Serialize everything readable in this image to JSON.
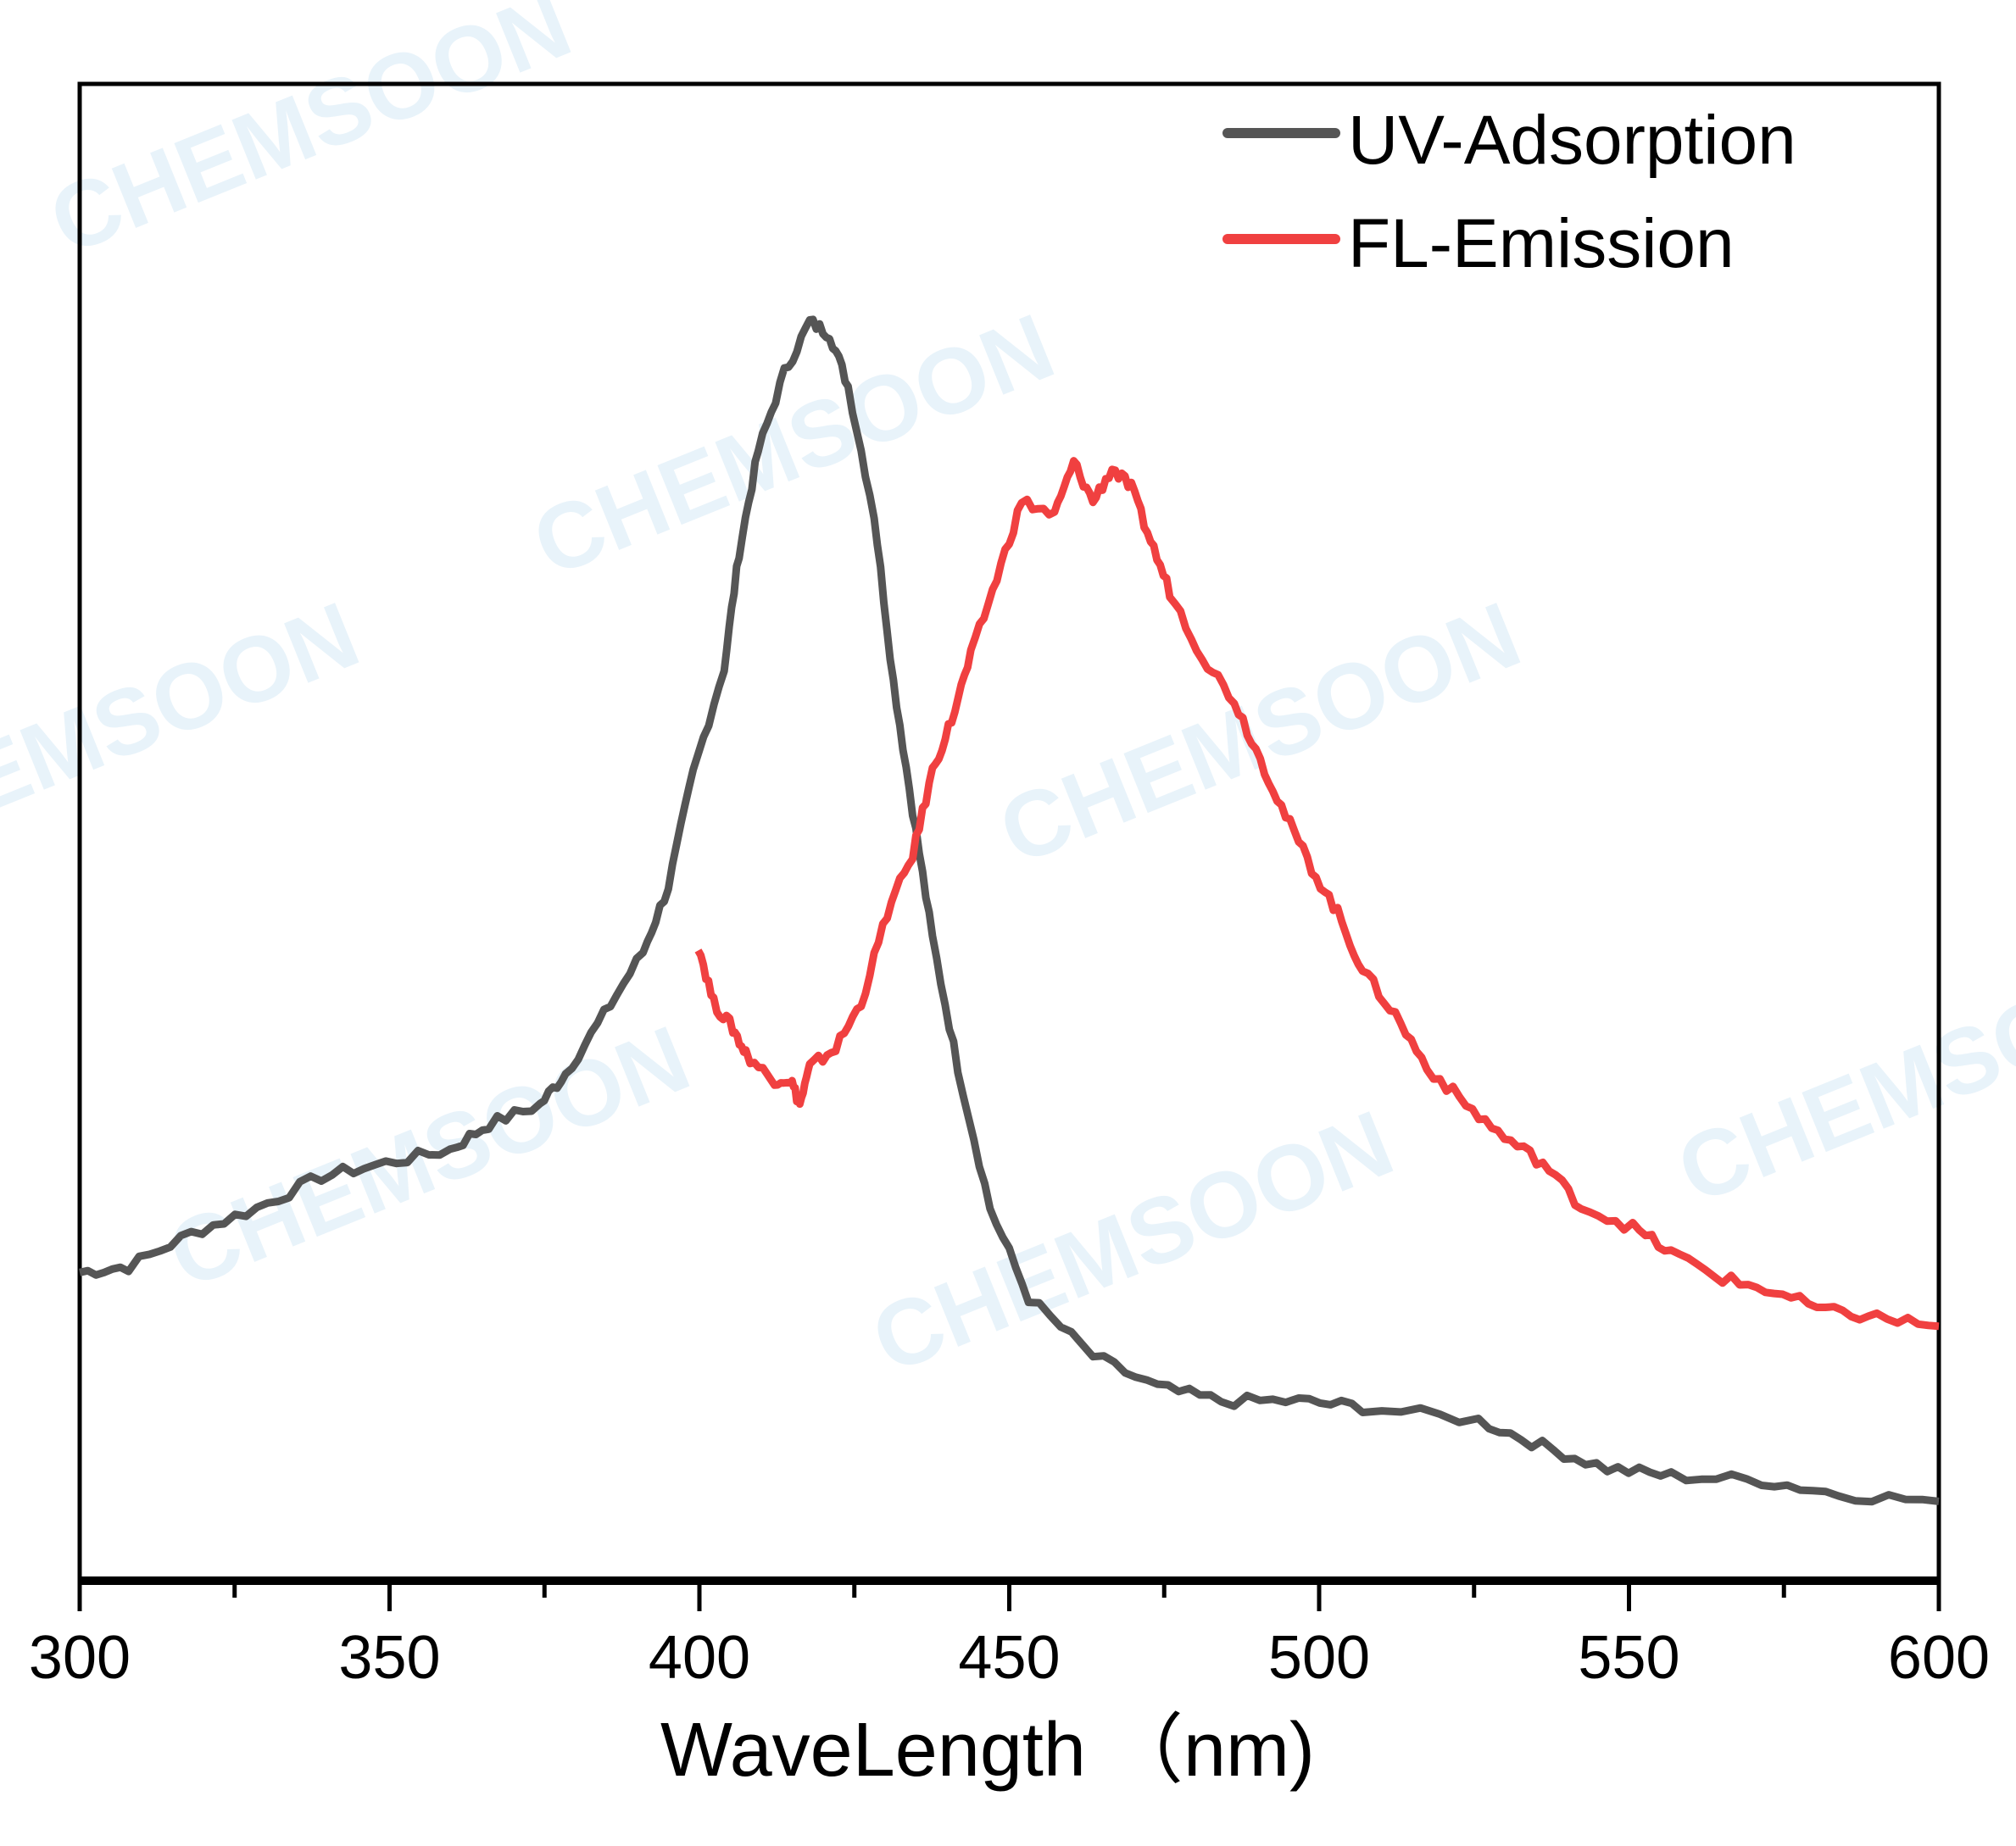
{
  "watermark": "CHEMSOON",
  "chart_data": {
    "type": "line",
    "title": "",
    "xlabel": "WaveLength （nm)",
    "ylabel": "",
    "xlim": [
      300,
      600
    ],
    "ylim": [
      0,
      1
    ],
    "y_ticks_shown": false,
    "grid": false,
    "legend_position": "top-right",
    "x_ticks": [
      "300",
      "350",
      "400",
      "450",
      "500",
      "550",
      "600"
    ],
    "series": [
      {
        "name": "UV-Adsorption",
        "color": "#555555",
        "x": [
          300,
          307.9,
          318,
          328.6,
          339,
          349.4,
          359.8,
          366,
          374.3,
          378.4,
          384.6,
          390.9,
          395,
          399,
          404,
          406.4,
          409.5,
          413.7,
          417.8,
          421,
          424,
          428.2,
          431.3,
          434.4,
          437.6,
          441.7,
          446.9,
          453.1,
          463.5,
          473.9,
          484.2,
          496.7,
          507,
          525.7,
          536,
          546.5,
          556.8,
          571.4,
          583.8,
          600
        ],
        "y": [
          0.206,
          0.21,
          0.232,
          0.249,
          0.27,
          0.279,
          0.288,
          0.305,
          0.318,
          0.339,
          0.378,
          0.42,
          0.464,
          0.54,
          0.61,
          0.687,
          0.755,
          0.807,
          0.841,
          0.833,
          0.798,
          0.712,
          0.601,
          0.515,
          0.429,
          0.343,
          0.249,
          0.189,
          0.15,
          0.129,
          0.12,
          0.12,
          0.116,
          0.107,
          0.09,
          0.075,
          0.07,
          0.067,
          0.058,
          0.053
        ]
      },
      {
        "name": "FL-Emission",
        "color": "#f04040",
        "x": [
          399.8,
          402.3,
          405.4,
          407.5,
          411.6,
          414.7,
          416.2,
          417.8,
          422,
          426.1,
          430.3,
          434.4,
          437.6,
          440.7,
          443.8,
          448,
          452,
          457.3,
          460.4,
          463.5,
          466.6,
          469.7,
          472.8,
          475.9,
          481.1,
          486.3,
          490.5,
          494.6,
          498.8,
          503,
          507,
          512.3,
          517.4,
          523.7,
          529.9,
          536.1,
          542.3,
          550.6,
          556.8,
          565.1,
          573.4,
          581.7,
          590,
          600
        ],
        "y": [
          0.425,
          0.386,
          0.369,
          0.352,
          0.335,
          0.335,
          0.318,
          0.343,
          0.356,
          0.386,
          0.446,
          0.485,
          0.541,
          0.575,
          0.618,
          0.67,
          0.721,
          0.712,
          0.747,
          0.721,
          0.743,
          0.73,
          0.695,
          0.661,
          0.618,
          0.588,
          0.549,
          0.511,
          0.476,
          0.446,
          0.408,
          0.378,
          0.343,
          0.318,
          0.296,
          0.279,
          0.25,
          0.236,
          0.219,
          0.202,
          0.193,
          0.18,
          0.176,
          0.17
        ]
      }
    ]
  }
}
